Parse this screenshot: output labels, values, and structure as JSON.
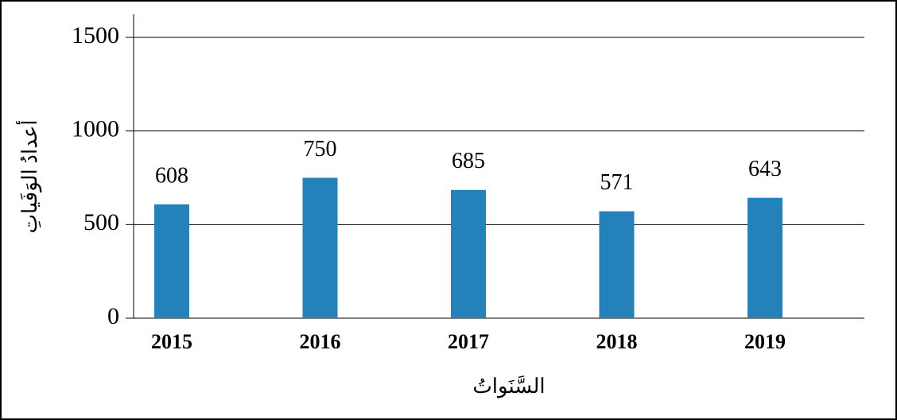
{
  "chart_data": {
    "type": "bar",
    "categories": [
      "2015",
      "2016",
      "2017",
      "2018",
      "2019"
    ],
    "values": [
      608,
      750,
      685,
      571,
      643
    ],
    "color": "#2581ba",
    "x_label": "السَّنَواتُ",
    "y_label": "أعدادُ الوَفَياتِ",
    "ylim": [
      0,
      1500
    ],
    "yticks": [
      0,
      500,
      1000,
      1500
    ],
    "grid": true
  }
}
